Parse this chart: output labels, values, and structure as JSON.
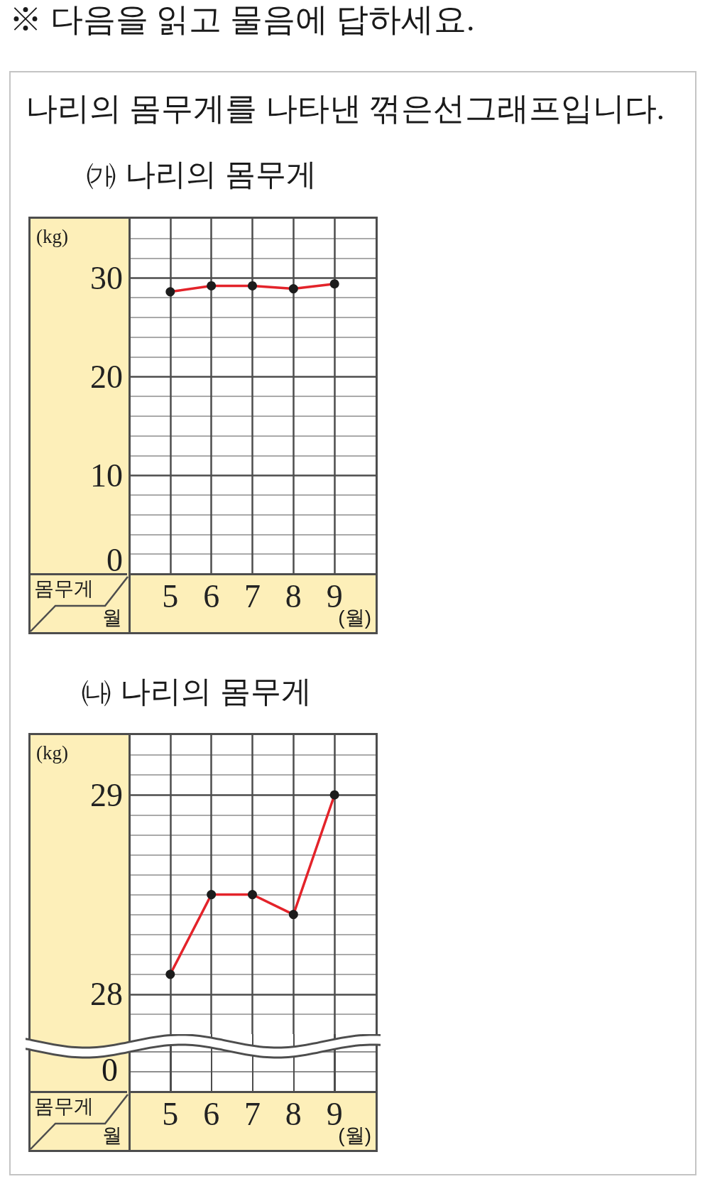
{
  "chart_data": [
    {
      "type": "line",
      "title": "㈎ 나리의 몸무게",
      "ylabel": "(kg)",
      "xlabel": "(월)",
      "annotations": [
        "※ 다음을 읽고 물음에 답하세요.",
        "나리의 몸무게를 나타낸 꺾은선그래프입니다.",
        "몸무게",
        "월"
      ],
      "x": [
        5,
        6,
        7,
        8,
        9
      ],
      "values": [
        28.6,
        29.2,
        29.2,
        28.9,
        29.4
      ],
      "color": "#e3232a",
      "marker": "circle",
      "line_style": "solid",
      "xlim": [
        4,
        10
      ],
      "xticks": [
        5,
        6,
        7,
        8,
        9
      ],
      "ylim": [
        0,
        36
      ],
      "yticks": [
        0,
        {
          "value": 2,
          "label": null
        },
        {
          "value": 4,
          "label": null
        },
        {
          "value": 6,
          "label": null
        },
        {
          "value": 8,
          "label": null
        },
        10,
        {
          "value": 12,
          "label": null
        },
        {
          "value": 14,
          "label": null
        },
        {
          "value": 16,
          "label": null
        },
        {
          "value": 18,
          "label": null
        },
        20,
        {
          "value": 22,
          "label": null
        },
        {
          "value": 24,
          "label": null
        },
        {
          "value": 26,
          "label": null
        },
        {
          "value": 28,
          "label": null
        },
        30,
        {
          "value": 32,
          "label": null
        },
        {
          "value": 34,
          "label": null
        }
      ],
      "grid": true
    },
    {
      "type": "line",
      "title": "㈏ 나리의 몸무게",
      "ylabel": "(kg)",
      "xlabel": "(월)",
      "annotations": [
        "0",
        "몸무게",
        "월"
      ],
      "x": [
        5,
        6,
        7,
        8,
        9
      ],
      "values": [
        28.1,
        28.5,
        28.5,
        28.4,
        29
      ],
      "color": "#e3232a",
      "marker": "circle",
      "line_style": "solid",
      "xlim": [
        4,
        10
      ],
      "xticks": [
        5,
        6,
        7,
        8,
        9
      ],
      "ylim": [
        27.8,
        29.3
      ],
      "yticks": [
        {
          "value": 27.9,
          "label": null
        },
        28,
        {
          "value": 28.1,
          "label": null
        },
        {
          "value": 28.2,
          "label": null
        },
        {
          "value": 28.3,
          "label": null
        },
        {
          "value": 28.4,
          "label": null
        },
        {
          "value": 28.5,
          "label": null
        },
        {
          "value": 28.6,
          "label": null
        },
        {
          "value": 28.7,
          "label": null
        },
        {
          "value": 28.8,
          "label": null
        },
        {
          "value": 28.9,
          "label": null
        },
        29,
        {
          "value": 29.1,
          "label": null
        },
        {
          "value": 29.2,
          "label": null
        }
      ],
      "grid": true
    }
  ]
}
